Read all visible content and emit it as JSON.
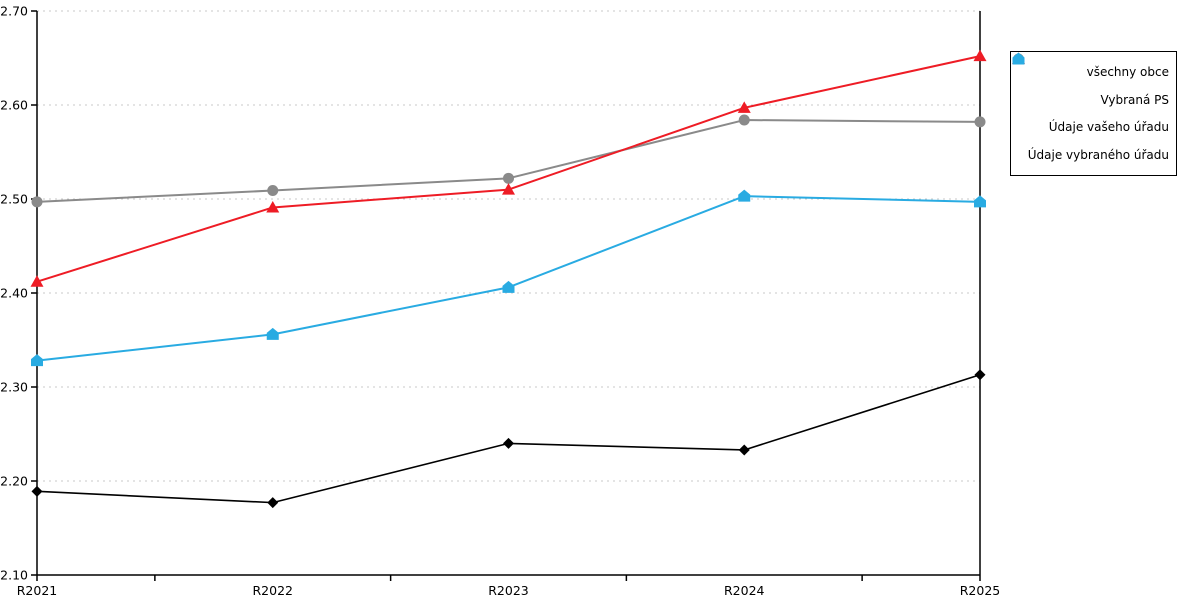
{
  "chart_data": {
    "type": "line",
    "title": "",
    "categories": [
      "R2021",
      "R2022",
      "R2023",
      "R2024",
      "R2025"
    ],
    "series": [
      {
        "name": "všechny obce",
        "color": "#000000",
        "marker": "diamond",
        "line_width": 1.6,
        "values": [
          2.189,
          2.177,
          2.24,
          2.233,
          2.313
        ]
      },
      {
        "name": "Vybraná PS",
        "color": "#8a8a8a",
        "marker": "circle",
        "line_width": 2,
        "values": [
          2.497,
          2.509,
          2.522,
          2.584,
          2.582
        ]
      },
      {
        "name": "Údaje vašeho úřadu",
        "color": "#ee1c25",
        "marker": "triangle",
        "line_width": 2,
        "values": [
          2.412,
          2.491,
          2.51,
          2.597,
          2.652
        ]
      },
      {
        "name": "Údaje vybraného úřadu",
        "color": "#29abe2",
        "marker": "pentagon",
        "line_width": 2,
        "values": [
          2.328,
          2.356,
          2.406,
          2.503,
          2.497
        ]
      }
    ],
    "ylim": [
      2.1,
      2.7
    ],
    "ytick_labels": [
      "2.10",
      "2.20",
      "2.30",
      "2.40",
      "2.50",
      "2.60",
      "2.70"
    ],
    "xlabel": "",
    "ylabel": "",
    "grid": "horizontal-dashed",
    "grid_color": "#c9c9c9",
    "axis_color": "#000000",
    "legend_position": "right",
    "background": "#ffffff"
  }
}
